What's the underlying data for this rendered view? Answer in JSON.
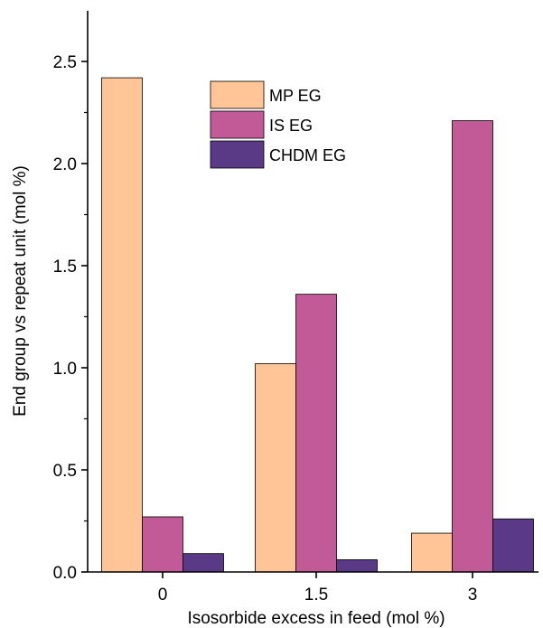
{
  "chart_data": {
    "type": "bar",
    "title": "",
    "xlabel": "Isosorbide excess in feed (mol %)",
    "ylabel": "End group vs repeat unit (mol %)",
    "categories": [
      "0",
      "1.5",
      "3"
    ],
    "series": [
      {
        "name": "MP EG",
        "values": [
          2.42,
          1.02,
          0.19
        ],
        "color": "#ffc596"
      },
      {
        "name": "IS EG",
        "values": [
          0.27,
          1.36,
          2.21
        ],
        "color": "#c15a96"
      },
      {
        "name": "CHDM EG",
        "values": [
          0.09,
          0.06,
          0.26
        ],
        "color": "#5a3a87"
      }
    ],
    "ylim": [
      0,
      2.75
    ],
    "yticks": [
      0.0,
      0.5,
      1.0,
      1.5,
      2.0,
      2.5
    ],
    "ytick_labels": [
      "0.0",
      "0.5",
      "1.0",
      "1.5",
      "2.0",
      "2.5"
    ],
    "grid": false,
    "legend_position": "top-center"
  }
}
